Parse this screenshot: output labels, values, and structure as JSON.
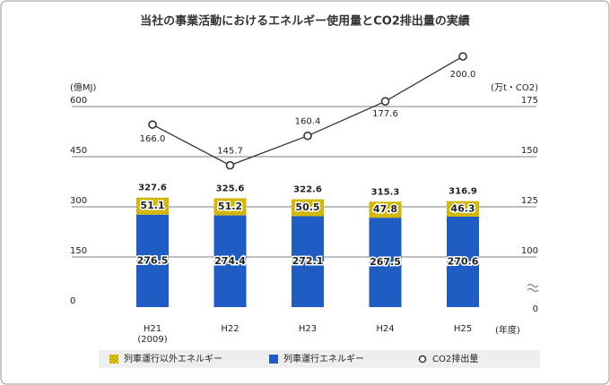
{
  "chart_data": {
    "type": "bar",
    "title": "当社の事業活動におけるエネルギー使用量とCO2排出量の実績",
    "y_label": "(億MJ)",
    "y2_label": "(万t・CO2)",
    "x_unit_label": "(年度)",
    "categories": [
      "H21",
      "H22",
      "H23",
      "H24",
      "H25"
    ],
    "first_category_note": "(2009)",
    "series": [
      {
        "name": "列車運行以外エネルギー",
        "type": "bar",
        "color": "#e6c800",
        "pattern": "hatch",
        "values": [
          51.1,
          51.2,
          50.5,
          47.8,
          46.3
        ]
      },
      {
        "name": "列車運行エネルギー",
        "type": "bar",
        "color": "#1f5cc4",
        "values": [
          276.5,
          274.4,
          272.1,
          267.5,
          270.6
        ]
      },
      {
        "name": "CO2排出量",
        "type": "line",
        "axis": "y2",
        "color": "#333333",
        "values": [
          166.0,
          145.7,
          160.4,
          177.6,
          200.0
        ],
        "value_labels": [
          "166.0",
          "145.7",
          "160.4",
          "177.6",
          "200.0"
        ]
      }
    ],
    "totals": [
      327.6,
      325.6,
      322.6,
      315.3,
      316.9
    ],
    "ylim": [
      0,
      750
    ],
    "yticks": [
      0,
      150,
      300,
      450,
      600
    ],
    "y2lim": [
      0,
      200
    ],
    "y2ticks": [
      0,
      100,
      125,
      150,
      175
    ],
    "y2_break": [
      0,
      100
    ],
    "grid": true
  }
}
